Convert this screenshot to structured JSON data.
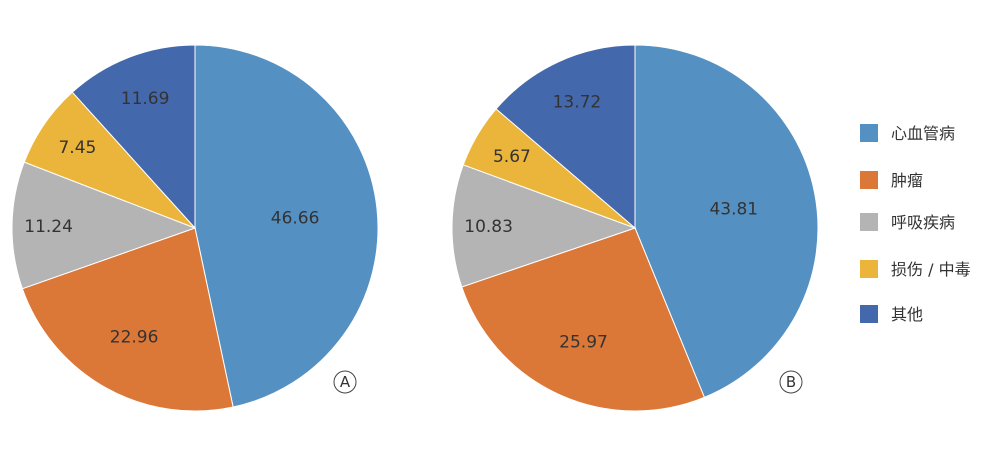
{
  "categories": [
    "心血管病",
    "肿瘤",
    "呼吸疾病",
    "损伤 / 中毒",
    "其他"
  ],
  "colors": [
    "#5590C3",
    "#DB7737",
    "#B4B4B4",
    "#EAB53A",
    "#4468AC"
  ],
  "chart_data": [
    {
      "type": "pie",
      "panel_label": "A",
      "categories": [
        "心血管病",
        "肿瘤",
        "呼吸疾病",
        "损伤 / 中毒",
        "其他"
      ],
      "values": [
        46.66,
        22.96,
        11.24,
        7.45,
        11.69
      ],
      "data_labels": [
        "46.66",
        "22.96",
        "11.24",
        "7.45",
        "11.69"
      ],
      "start": "12 o'clock",
      "direction": "clockwise"
    },
    {
      "type": "pie",
      "panel_label": "B",
      "categories": [
        "心血管病",
        "肿瘤",
        "呼吸疾病",
        "损伤 / 中毒",
        "其他"
      ],
      "values": [
        43.81,
        25.97,
        10.83,
        5.67,
        13.72
      ],
      "data_labels": [
        "43.81",
        "25.97",
        "10.83",
        "5.67",
        "13.72"
      ],
      "start": "12 o'clock",
      "direction": "clockwise"
    }
  ],
  "legend": {
    "placement": "right",
    "items": [
      "心血管病",
      "肿瘤",
      "呼吸疾病",
      "损伤 / 中毒",
      "其他"
    ]
  }
}
